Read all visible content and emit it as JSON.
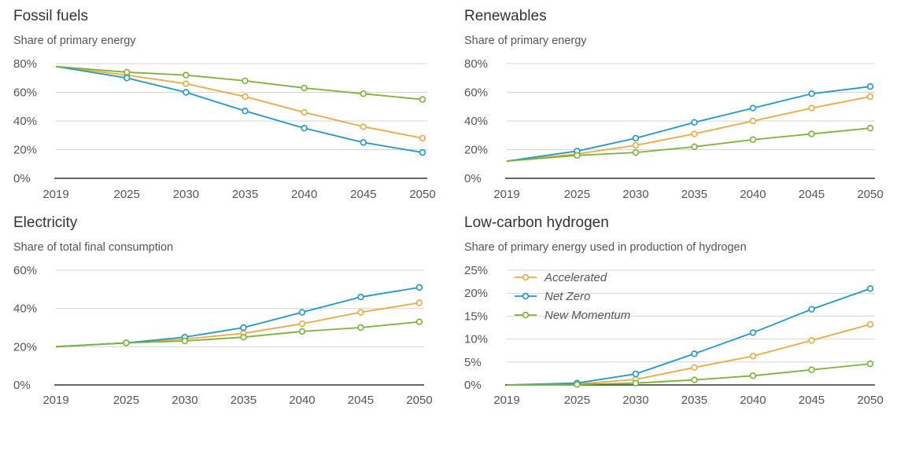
{
  "colors": {
    "accelerated": "#f0a93c",
    "net_zero": "#1a9ad0",
    "new_momentum": "#7ab532",
    "grid": "#d4d4d4",
    "axis": "#333333"
  },
  "legend": [
    "Accelerated",
    "Net Zero",
    "New Momentum"
  ],
  "chart_data": [
    {
      "type": "line",
      "title": "Fossil fuels",
      "subtitle": "Share of primary energy",
      "x": [
        2019,
        2025,
        2030,
        2035,
        2040,
        2045,
        2050
      ],
      "ylim": [
        0,
        80
      ],
      "yticks": [
        0,
        20,
        40,
        60,
        80
      ],
      "ytick_labels": [
        "0%",
        "20%",
        "40%",
        "60%",
        "80%"
      ],
      "grid": true,
      "series": [
        {
          "name": "Accelerated",
          "values": [
            78,
            72,
            66,
            57,
            46,
            36,
            28
          ]
        },
        {
          "name": "Net Zero",
          "values": [
            78,
            70,
            60,
            47,
            35,
            25,
            18
          ]
        },
        {
          "name": "New Momentum",
          "values": [
            78,
            74,
            72,
            68,
            63,
            59,
            55
          ]
        }
      ]
    },
    {
      "type": "line",
      "title": "Renewables",
      "subtitle": "Share of primary energy",
      "x": [
        2019,
        2025,
        2030,
        2035,
        2040,
        2045,
        2050
      ],
      "ylim": [
        0,
        80
      ],
      "yticks": [
        0,
        20,
        40,
        60,
        80
      ],
      "ytick_labels": [
        "0%",
        "20%",
        "40%",
        "60%",
        "80%"
      ],
      "grid": true,
      "series": [
        {
          "name": "Accelerated",
          "values": [
            12,
            17,
            23,
            31,
            40,
            49,
            57
          ]
        },
        {
          "name": "Net Zero",
          "values": [
            12,
            19,
            28,
            39,
            49,
            59,
            64
          ]
        },
        {
          "name": "New Momentum",
          "values": [
            12,
            16,
            18,
            22,
            27,
            31,
            35
          ]
        }
      ]
    },
    {
      "type": "line",
      "title": "Electricity",
      "subtitle": "Share of total final consumption",
      "x": [
        2019,
        2025,
        2030,
        2035,
        2040,
        2045,
        2050
      ],
      "ylim": [
        0,
        60
      ],
      "yticks": [
        0,
        20,
        40,
        60
      ],
      "ytick_labels": [
        "0%",
        "20%",
        "40%",
        "60%"
      ],
      "grid": true,
      "series": [
        {
          "name": "Accelerated",
          "values": [
            20,
            22,
            24,
            27,
            32,
            38,
            43
          ]
        },
        {
          "name": "Net Zero",
          "values": [
            20,
            22,
            25,
            30,
            38,
            46,
            51
          ]
        },
        {
          "name": "New Momentum",
          "values": [
            20,
            22,
            23,
            25,
            28,
            30,
            33
          ]
        }
      ]
    },
    {
      "type": "line",
      "title": "Low-carbon hydrogen",
      "subtitle": "Share of primary energy used in production of hydrogen",
      "x": [
        2019,
        2025,
        2030,
        2035,
        2040,
        2045,
        2050
      ],
      "ylim": [
        0,
        25
      ],
      "yticks": [
        0,
        5,
        10,
        15,
        20,
        25
      ],
      "ytick_labels": [
        "0%",
        "5%",
        "10%",
        "15%",
        "20%",
        "25%"
      ],
      "grid": true,
      "legend_position": "top-left",
      "series": [
        {
          "name": "Accelerated",
          "values": [
            0,
            0.2,
            1.2,
            3.8,
            6.3,
            9.7,
            13.2
          ]
        },
        {
          "name": "Net Zero",
          "values": [
            0,
            0.4,
            2.4,
            6.8,
            11.4,
            16.5,
            21.0
          ]
        },
        {
          "name": "New Momentum",
          "values": [
            0,
            0.1,
            0.4,
            1.1,
            2.0,
            3.3,
            4.6
          ]
        }
      ]
    }
  ]
}
